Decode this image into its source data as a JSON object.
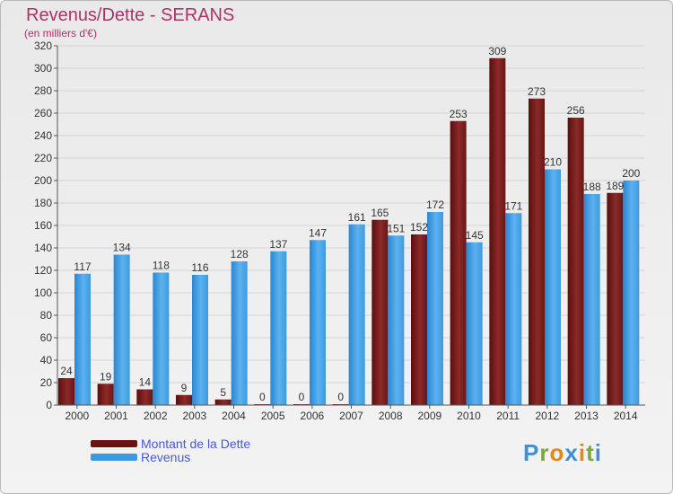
{
  "title": "Revenus/Dette - SERANS",
  "subtitle": "(en milliers d'€)",
  "brand_logo": "Proxiti",
  "colors": {
    "debt": "#7a1a1a",
    "revenue": "#3d9ae0",
    "title": "#b0306a",
    "legend_text": "#4a57e0"
  },
  "chart_data": {
    "type": "bar",
    "title": "Revenus/Dette - SERANS",
    "ylabel": "(en milliers d'€)",
    "xlabel": "",
    "ylim": [
      0,
      320
    ],
    "yticks": [
      0,
      20,
      40,
      60,
      80,
      100,
      120,
      140,
      160,
      180,
      200,
      220,
      240,
      260,
      280,
      300,
      320
    ],
    "grid": true,
    "legend_position": "bottom-left",
    "categories": [
      "2000",
      "2001",
      "2002",
      "2003",
      "2004",
      "2005",
      "2006",
      "2007",
      "2008",
      "2009",
      "2010",
      "2011",
      "2012",
      "2013",
      "2014"
    ],
    "series": [
      {
        "name": "Montant de la Dette",
        "color": "#7a1a1a",
        "values": [
          24,
          19,
          14,
          9,
          5,
          0,
          0,
          0,
          165,
          152,
          253,
          309,
          273,
          256,
          189
        ]
      },
      {
        "name": "Revenus",
        "color": "#3d9ae0",
        "values": [
          117,
          134,
          118,
          116,
          128,
          137,
          147,
          161,
          151,
          172,
          145,
          171,
          210,
          188,
          200
        ]
      }
    ]
  }
}
